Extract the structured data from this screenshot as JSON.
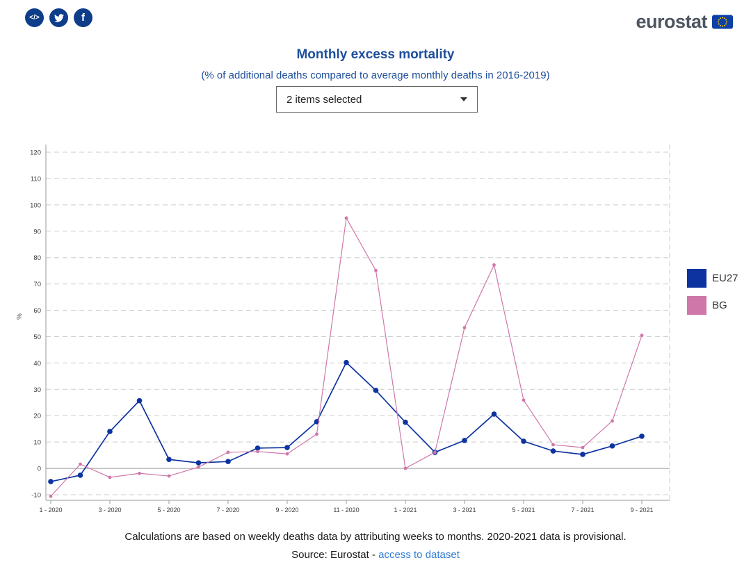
{
  "header": {
    "social": [
      {
        "name": "embed-code",
        "glyph": "</>"
      },
      {
        "name": "twitter"
      },
      {
        "name": "facebook",
        "glyph": "f"
      }
    ],
    "logo_text": "eurostat"
  },
  "titles": {
    "title": "Monthly excess mortality",
    "subtitle": "(% of additional deaths compared to average monthly deaths in 2016-2019)"
  },
  "filter": {
    "selected_label": "2 items selected"
  },
  "chart_data": {
    "type": "line",
    "title": "Monthly excess mortality",
    "x": [
      "1 - 2020",
      "2 - 2020",
      "3 - 2020",
      "4 - 2020",
      "5 - 2020",
      "6 - 2020",
      "7 - 2020",
      "8 - 2020",
      "9 - 2020",
      "10 - 2020",
      "11 - 2020",
      "12 - 2020",
      "1 - 2021",
      "2 - 2021",
      "3 - 2021",
      "4 - 2021",
      "5 - 2021",
      "6 - 2021",
      "7 - 2021",
      "8 - 2021",
      "9 - 2021"
    ],
    "x_ticks_shown": [
      "1 - 2020",
      "3 - 2020",
      "5 - 2020",
      "7 - 2020",
      "9 - 2020",
      "11 - 2020",
      "1 - 2021",
      "3 - 2021",
      "5 - 2021",
      "7 - 2021",
      "9 - 2021"
    ],
    "series": [
      {
        "name": "EU27",
        "color": "#0d33a0",
        "values": [
          -5,
          -2.6,
          14,
          25.7,
          3.4,
          2.1,
          2.6,
          7.7,
          7.9,
          17.7,
          40.2,
          29.6,
          17.5,
          6.1,
          10.6,
          20.6,
          10.3,
          6.6,
          5.3,
          8.5,
          12.2
        ]
      },
      {
        "name": "BG",
        "color": "#cf77a9",
        "values": [
          -10.6,
          1.6,
          -3.4,
          -1.9,
          -2.9,
          0.5,
          6.1,
          6.4,
          5.5,
          13,
          95,
          75.1,
          0,
          6.1,
          53.4,
          77.2,
          25.9,
          9,
          7.9,
          18,
          50.5
        ]
      }
    ],
    "ylabel": "%",
    "ylim": [
      -10,
      120
    ],
    "ytick_step": 10,
    "grid": "horizontal-dashed",
    "legend_position": "right"
  },
  "footer": {
    "note": "Calculations are based on weekly deaths data by attributing weeks to months. 2020-2021 data is provisional.",
    "source_text": "Source: Eurostat -",
    "source_link": "access to dataset"
  }
}
